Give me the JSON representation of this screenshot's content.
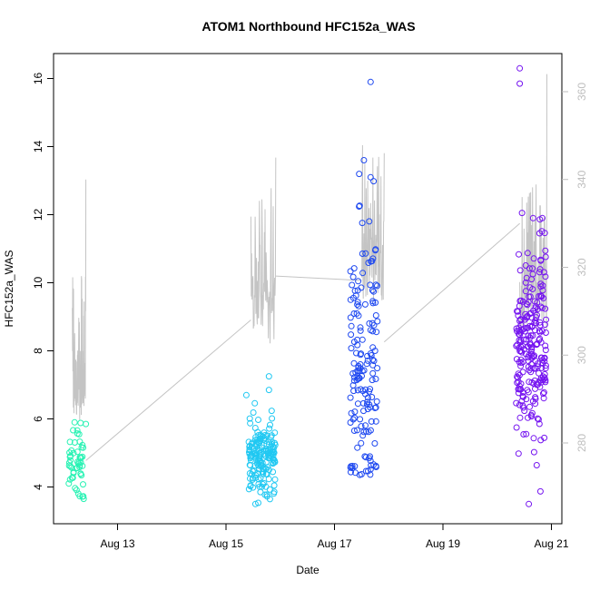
{
  "chart_data": {
    "type": "scatter",
    "title": "ATOM1 Northbound HFC152a_WAS",
    "xlabel": "Date",
    "ylabel": "HFC152a_WAS",
    "x_ticks": [
      "Aug 13",
      "Aug 15",
      "Aug 17",
      "Aug 19",
      "Aug 21"
    ],
    "y_ticks": [
      4,
      6,
      8,
      10,
      12,
      14,
      16
    ],
    "y2_ticks": [
      280,
      300,
      320,
      340,
      360
    ],
    "ylim": [
      3.1,
      16.6
    ],
    "y2lim": [
      267,
      363
    ],
    "xlim_days_ref": "Aug 12 00:00",
    "grid": false,
    "colors": {
      "g1": "#27f2b3",
      "g2": "#20c8f2",
      "g3": "#1f49f0",
      "g4": "#7514f0",
      "line": "#c4c4c4"
    },
    "groups": [
      {
        "color_key": "g1",
        "center": "Aug 12 06:00",
        "width_days": 0.3,
        "mean": 4.65,
        "sd": 0.45,
        "min": 3.65,
        "max": 5.9,
        "n": 50,
        "outliers": [
          {
            "x": "Aug 12 05:00",
            "y": 5.9
          },
          {
            "x": "Aug 12 09:00",
            "y": 3.65
          },
          {
            "x": "Aug 12 10:00",
            "y": 5.85
          },
          {
            "x": "Aug 12 07:00",
            "y": 5.55
          }
        ]
      },
      {
        "color_key": "g2",
        "center": "Aug 15 16:00",
        "width_days": 0.5,
        "mean": 4.85,
        "sd": 0.5,
        "min": 3.5,
        "max": 7.25,
        "n": 170,
        "outliers": [
          {
            "x": "Aug 15 19:00",
            "y": 7.25
          },
          {
            "x": "Aug 15 19:00",
            "y": 6.85
          },
          {
            "x": "Aug 15 09:00",
            "y": 6.7
          },
          {
            "x": "Aug 15 13:00",
            "y": 3.5
          }
        ]
      },
      {
        "color_key": "g3",
        "center": "Aug 17 13:00",
        "width_days": 0.5,
        "mean": 7.6,
        "sd": 2.2,
        "min": 4.35,
        "max": 15.9,
        "n": 160,
        "outliers": [
          {
            "x": "Aug 17 16:00",
            "y": 15.9
          },
          {
            "x": "Aug 17 13:00",
            "y": 13.6
          },
          {
            "x": "Aug 17 16:00",
            "y": 13.1
          }
        ]
      },
      {
        "color_key": "g4",
        "center": "Aug 20 15:00",
        "width_days": 0.55,
        "mean": 8.0,
        "sd": 1.45,
        "min": 3.5,
        "max": 16.3,
        "n": 240,
        "outliers": [
          {
            "x": "Aug 20 10:00",
            "y": 16.3
          },
          {
            "x": "Aug 20 10:00",
            "y": 15.85
          },
          {
            "x": "Aug 20 11:00",
            "y": 12.05
          },
          {
            "x": "Aug 20 20:00",
            "y": 11.9
          },
          {
            "x": "Aug 20 14:00",
            "y": 3.5
          }
        ]
      }
    ],
    "secondary_line": {
      "axis": "right",
      "segments": [
        {
          "from": "Aug 12 04:00",
          "to": "Aug 12 10:00",
          "base": 293,
          "peaks": [
            {
              "x": "Aug 12 05:00",
              "y": 305
            },
            {
              "x": "Aug 12 08:00",
              "y": 318
            },
            {
              "x": "Aug 12 10:00",
              "y": 340
            }
          ]
        },
        {
          "from": "Aug 15 11:00",
          "to": "Aug 15 22:00",
          "base": 310,
          "peaks": [
            {
              "x": "Aug 15 12:00",
              "y": 318
            },
            {
              "x": "Aug 15 15:00",
              "y": 325
            },
            {
              "x": "Aug 15 17:00",
              "y": 328
            },
            {
              "x": "Aug 15 20:00",
              "y": 338
            },
            {
              "x": "Aug 15 22:00",
              "y": 345
            }
          ]
        },
        {
          "from": "Aug 17 12:00",
          "to": "Aug 17 22:00",
          "base": 320,
          "peaks": [
            {
              "x": "Aug 17 14:00",
              "y": 338
            },
            {
              "x": "Aug 17 17:00",
              "y": 345
            },
            {
              "x": "Aug 17 19:00",
              "y": 343
            },
            {
              "x": "Aug 17 22:00",
              "y": 346
            }
          ]
        },
        {
          "from": "Aug 20 10:00",
          "to": "Aug 20 22:00",
          "base": 312,
          "peaks": [
            {
              "x": "Aug 20 11:00",
              "y": 336
            },
            {
              "x": "Aug 20 19:00",
              "y": 334
            },
            {
              "x": "Aug 20 22:00",
              "y": 364
            }
          ]
        }
      ],
      "connectors": [
        {
          "x0": "Aug 12 10:00",
          "y0": 276,
          "x1": "Aug 15 11:00",
          "y1": 308
        },
        {
          "x0": "Aug 15 22:00",
          "y0": 318,
          "x1": "Aug 17 12:00",
          "y1": 317
        },
        {
          "x0": "Aug 17 22:00",
          "y0": 303,
          "x1": "Aug 20 10:00",
          "y1": 330
        }
      ]
    }
  }
}
